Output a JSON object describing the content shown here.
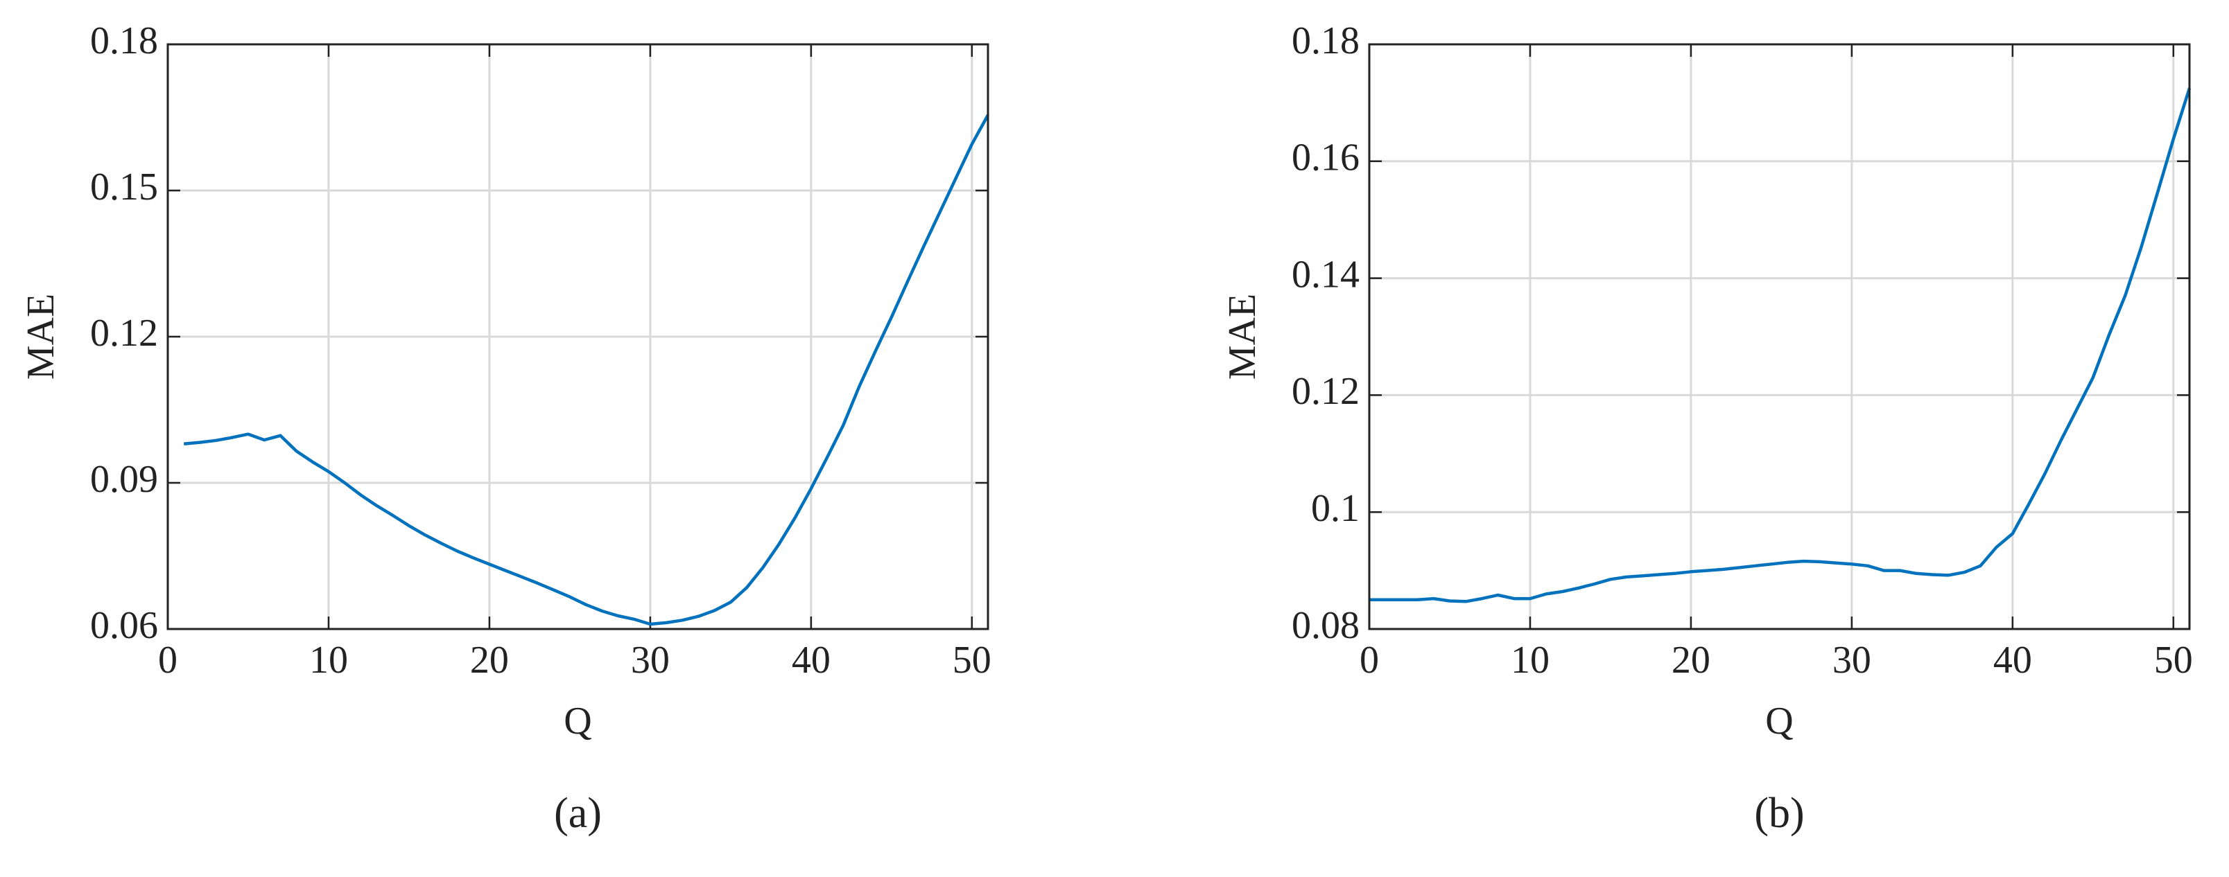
{
  "chart_data": [
    {
      "type": "line",
      "x_label": "Q",
      "y_label": "MAE",
      "caption": "(a)",
      "color": "#0072bd",
      "xlim": [
        0,
        51
      ],
      "xticks": [
        0,
        10,
        20,
        30,
        40,
        50
      ],
      "ylim": [
        0.06,
        0.18
      ],
      "yticks": [
        0.06,
        0.09,
        0.12,
        0.15,
        0.18
      ],
      "grid": true,
      "x": [
        1,
        2,
        3,
        4,
        5,
        6,
        7,
        8,
        9,
        10,
        11,
        12,
        13,
        14,
        15,
        16,
        17,
        18,
        19,
        20,
        21,
        22,
        23,
        24,
        25,
        26,
        27,
        28,
        29,
        30,
        31,
        32,
        33,
        34,
        35,
        36,
        37,
        38,
        39,
        40,
        41,
        42,
        43,
        44,
        45,
        46,
        47,
        48,
        49,
        50,
        51
      ],
      "values": [
        0.098,
        0.0983,
        0.0987,
        0.0993,
        0.1,
        0.0988,
        0.0997,
        0.0965,
        0.0943,
        0.0923,
        0.09,
        0.0875,
        0.0853,
        0.0833,
        0.0812,
        0.0793,
        0.0776,
        0.076,
        0.0746,
        0.0733,
        0.072,
        0.0707,
        0.0694,
        0.068,
        0.0666,
        0.065,
        0.0637,
        0.0627,
        0.062,
        0.061,
        0.0613,
        0.0618,
        0.0626,
        0.0638,
        0.0655,
        0.0685,
        0.0726,
        0.0774,
        0.0828,
        0.0888,
        0.0952,
        0.1018,
        0.1098,
        0.117,
        0.124,
        0.1313,
        0.1385,
        0.1455,
        0.1525,
        0.1595,
        0.1655
      ]
    },
    {
      "type": "line",
      "x_label": "Q",
      "y_label": "MAE",
      "caption": "(b)",
      "color": "#0072bd",
      "xlim": [
        0,
        51
      ],
      "xticks": [
        0,
        10,
        20,
        30,
        40,
        50
      ],
      "ylim": [
        0.08,
        0.18
      ],
      "yticks": [
        0.08,
        0.1,
        0.12,
        0.14,
        0.16,
        0.18
      ],
      "grid": true,
      "x": [
        0,
        1,
        2,
        3,
        4,
        5,
        6,
        7,
        8,
        9,
        10,
        11,
        12,
        13,
        14,
        15,
        16,
        17,
        18,
        19,
        20,
        21,
        22,
        23,
        24,
        25,
        26,
        27,
        28,
        29,
        30,
        31,
        32,
        33,
        34,
        35,
        36,
        37,
        38,
        39,
        40,
        41,
        42,
        43,
        44,
        45,
        46,
        47,
        48,
        49,
        50,
        51
      ],
      "values": [
        0.085,
        0.085,
        0.085,
        0.085,
        0.0852,
        0.0848,
        0.0847,
        0.0852,
        0.0858,
        0.0852,
        0.0852,
        0.086,
        0.0864,
        0.087,
        0.0877,
        0.0885,
        0.0889,
        0.0891,
        0.0893,
        0.0895,
        0.0898,
        0.09,
        0.0902,
        0.0905,
        0.0908,
        0.0911,
        0.0914,
        0.0916,
        0.0915,
        0.0913,
        0.0911,
        0.0908,
        0.09,
        0.09,
        0.0895,
        0.0893,
        0.0892,
        0.0897,
        0.0908,
        0.094,
        0.0963,
        0.1013,
        0.1065,
        0.1122,
        0.1176,
        0.123,
        0.1303,
        0.137,
        0.1453,
        0.1545,
        0.1638,
        0.1725
      ]
    }
  ]
}
